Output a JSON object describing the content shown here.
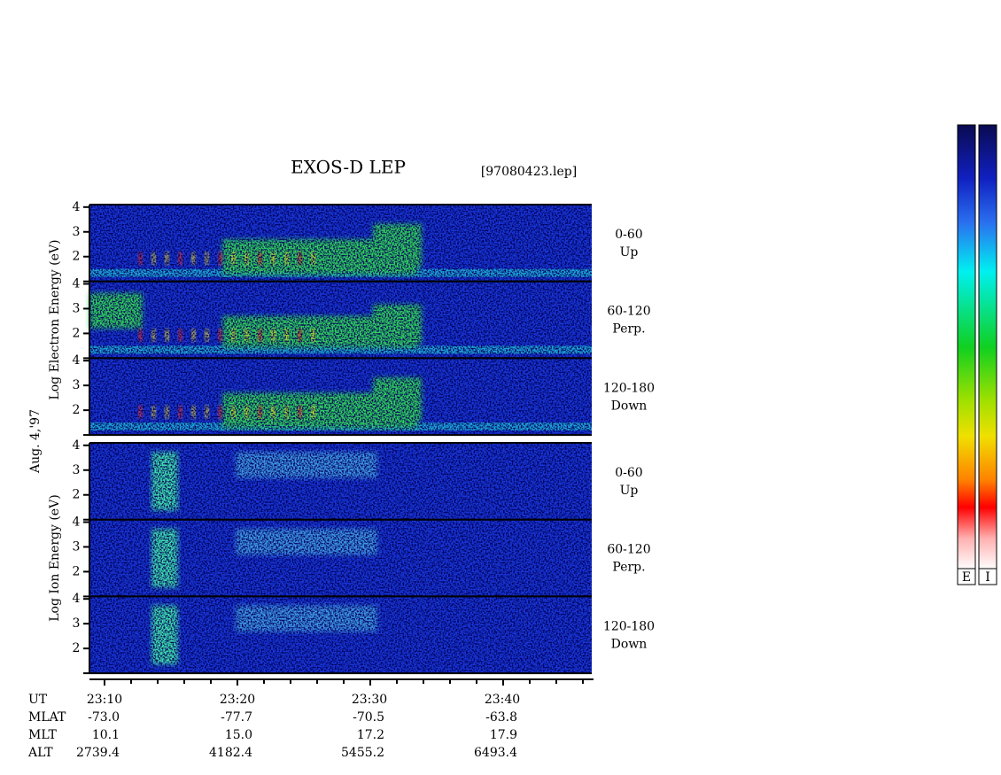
{
  "title": "EXOS-D LEP",
  "file": "[97080423.lep]",
  "date_label": "Aug. 4,'97",
  "groups": [
    {
      "ylabel": "Log Electron Energy (eV)",
      "ylim": [
        1,
        4.1
      ],
      "yticks": [
        2,
        3,
        4
      ],
      "panels": [
        {
          "range": "0-60",
          "direction": "Up"
        },
        {
          "range": "60-120",
          "direction": "Perp."
        },
        {
          "range": "120-180",
          "direction": "Down"
        }
      ]
    },
    {
      "ylabel": "Log Ion Energy (eV)",
      "ylim": [
        1,
        4.1
      ],
      "yticks": [
        2,
        3,
        4
      ],
      "panels": [
        {
          "range": "0-60",
          "direction": "Up"
        },
        {
          "range": "60-120",
          "direction": "Perp."
        },
        {
          "range": "120-180",
          "direction": "Down"
        }
      ]
    }
  ],
  "x_axis": {
    "rows": [
      {
        "label": "UT",
        "values": [
          "23:10",
          "23:20",
          "23:30",
          "23:40"
        ]
      },
      {
        "label": "MLAT",
        "values": [
          "-73.0",
          "-77.7",
          "-70.5",
          "-63.8"
        ]
      },
      {
        "label": "MLT",
        "values": [
          "10.1",
          "15.0",
          "17.2",
          "17.9"
        ]
      },
      {
        "label": "ALT",
        "values": [
          "2739.4",
          "4182.4",
          "5455.2",
          "6493.4"
        ]
      }
    ]
  },
  "colorbars": [
    "E",
    "I"
  ]
}
